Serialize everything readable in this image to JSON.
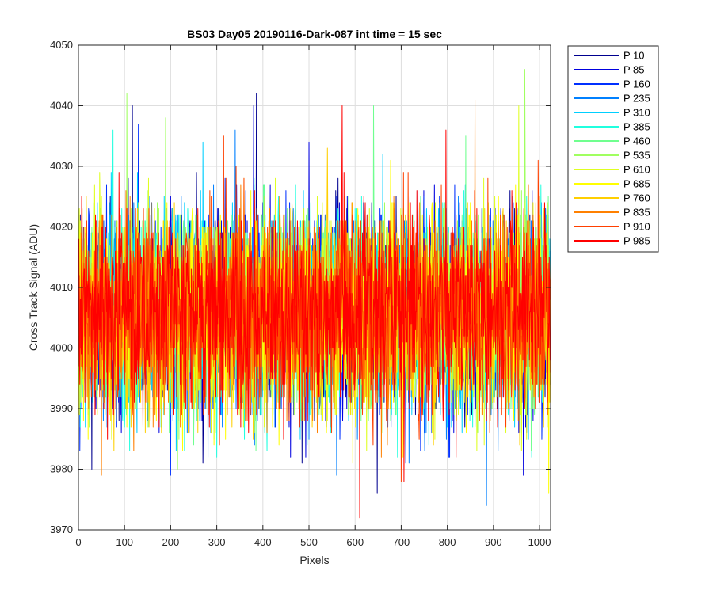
{
  "chart_data": {
    "type": "line",
    "title": "BS03 Day05 20190116-Dark-087 int time = 15 sec",
    "xlabel": "Pixels",
    "ylabel": "Cross Track Signal (ADU)",
    "xlim": [
      0,
      1024
    ],
    "ylim": [
      3970,
      4050
    ],
    "x_ticks": [
      0,
      100,
      200,
      300,
      400,
      500,
      600,
      700,
      800,
      900,
      1000
    ],
    "y_ticks": [
      3970,
      3980,
      3990,
      4000,
      4010,
      4020,
      4030,
      4040,
      4050
    ],
    "grid": true,
    "legend_position": "outside-top-right",
    "x_range": [
      1,
      1024
    ],
    "series": [
      {
        "name": "P 10",
        "color": "#00008f",
        "mean": 4006,
        "spread": 8,
        "peaks": [
          [
            117,
            4040
          ],
          [
            386,
            4042
          ],
          [
            648,
            3976
          ],
          [
            270,
            3981
          ],
          [
            29,
            3980
          ]
        ]
      },
      {
        "name": "P 85",
        "color": "#0000df",
        "mean": 4006,
        "spread": 8,
        "peaks": [
          [
            380,
            4040
          ],
          [
            500,
            4034
          ],
          [
            710,
            3981
          ],
          [
            460,
            3982
          ],
          [
            965,
            3979
          ]
        ]
      },
      {
        "name": "P 160",
        "color": "#0030ff",
        "mean": 4006,
        "spread": 8,
        "peaks": [
          [
            200,
            3979
          ],
          [
            805,
            3982
          ],
          [
            130,
            4037
          ],
          [
            3,
            3983
          ],
          [
            1005,
            3985
          ]
        ]
      },
      {
        "name": "P 235",
        "color": "#0080ff",
        "mean": 4006,
        "spread": 8,
        "peaks": [
          [
            885,
            3974
          ],
          [
            560,
            3979
          ],
          [
            340,
            4036
          ],
          [
            40,
            4020
          ]
        ]
      },
      {
        "name": "P 310",
        "color": "#00cfff",
        "mean": 4006,
        "spread": 8,
        "peaks": [
          [
            15,
            3987
          ],
          [
            270,
            4034
          ],
          [
            660,
            4032
          ],
          [
            90,
            3992
          ]
        ]
      },
      {
        "name": "P 385",
        "color": "#20ffdf",
        "mean": 4006,
        "spread": 8,
        "peaks": [
          [
            75,
            4036
          ],
          [
            360,
            3985
          ],
          [
            230,
            3983
          ]
        ]
      },
      {
        "name": "P 460",
        "color": "#70ff8f",
        "mean": 4006,
        "spread": 8,
        "peaks": [
          [
            640,
            4040
          ],
          [
            250,
            3984
          ],
          [
            840,
            4035
          ]
        ]
      },
      {
        "name": "P 535",
        "color": "#a0ff60",
        "mean": 4006,
        "spread": 8,
        "peaks": [
          [
            105,
            4042
          ],
          [
            189,
            4038
          ],
          [
            968,
            4046
          ],
          [
            215,
            3980
          ]
        ]
      },
      {
        "name": "P 610",
        "color": "#dfff20",
        "mean": 4006,
        "spread": 8,
        "peaks": [
          [
            955,
            4040
          ],
          [
            820,
            3988
          ],
          [
            625,
            3983
          ]
        ]
      },
      {
        "name": "P 685",
        "color": "#ffff00",
        "mean": 4006,
        "spread": 8,
        "peaks": [
          [
            595,
            3981
          ],
          [
            1020,
            3976
          ],
          [
            985,
            3994
          ]
        ]
      },
      {
        "name": "P 760",
        "color": "#ffcf00",
        "mean": 4006,
        "spread": 8,
        "peaks": [
          [
            540,
            4033
          ],
          [
            180,
            3986
          ],
          [
            770,
            3984
          ]
        ]
      },
      {
        "name": "P 835",
        "color": "#ff8000",
        "mean": 4006,
        "spread": 8,
        "peaks": [
          [
            860,
            4041
          ],
          [
            50,
            3979
          ],
          [
            120,
            3983
          ],
          [
            670,
            3984
          ]
        ]
      },
      {
        "name": "P 910",
        "color": "#ff4000",
        "mean": 4006,
        "spread": 8,
        "peaks": [
          [
            315,
            4035
          ],
          [
            480,
            3987
          ],
          [
            700,
            3978
          ]
        ]
      },
      {
        "name": "P 985",
        "color": "#ff0000",
        "mean": 4006,
        "spread": 8,
        "peaks": [
          [
            610,
            3972
          ],
          [
            572,
            4040
          ],
          [
            797,
            4036
          ],
          [
            706,
            3978
          ]
        ]
      }
    ]
  }
}
